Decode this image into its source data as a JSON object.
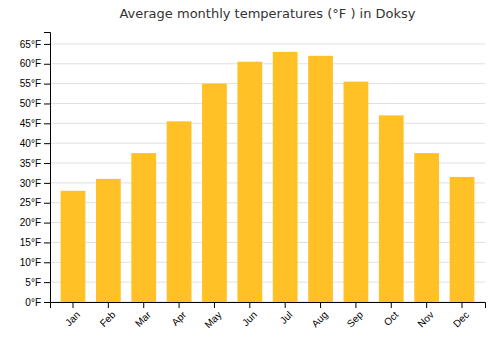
{
  "chart_data": {
    "type": "bar",
    "title": "Average monthly temperatures (°F ) in Doksy",
    "categories": [
      "Jan",
      "Feb",
      "Mar",
      "Apr",
      "May",
      "Jun",
      "Jul",
      "Aug",
      "Sep",
      "Oct",
      "Nov",
      "Dec"
    ],
    "values": [
      28,
      31,
      37.5,
      45.5,
      55,
      60.5,
      63,
      62,
      55.5,
      47,
      37.5,
      31.5
    ],
    "color": "#FFC125",
    "ylim": [
      0,
      68
    ],
    "yticks": [
      {
        "value": 0,
        "label": "0°F"
      },
      {
        "value": 5,
        "label": "5°F"
      },
      {
        "value": 10,
        "label": "10°F"
      },
      {
        "value": 15,
        "label": "15°F"
      },
      {
        "value": 20,
        "label": "20°F"
      },
      {
        "value": 25,
        "label": "25°F"
      },
      {
        "value": 30,
        "label": "30°F"
      },
      {
        "value": 35,
        "label": "35°F"
      },
      {
        "value": 40,
        "label": "40°F"
      },
      {
        "value": 45,
        "label": "45°F"
      },
      {
        "value": 50,
        "label": "50°F"
      },
      {
        "value": 55,
        "label": "55°F"
      },
      {
        "value": 60,
        "label": "60°F"
      },
      {
        "value": 65,
        "label": "65°F"
      }
    ],
    "grid": true
  }
}
